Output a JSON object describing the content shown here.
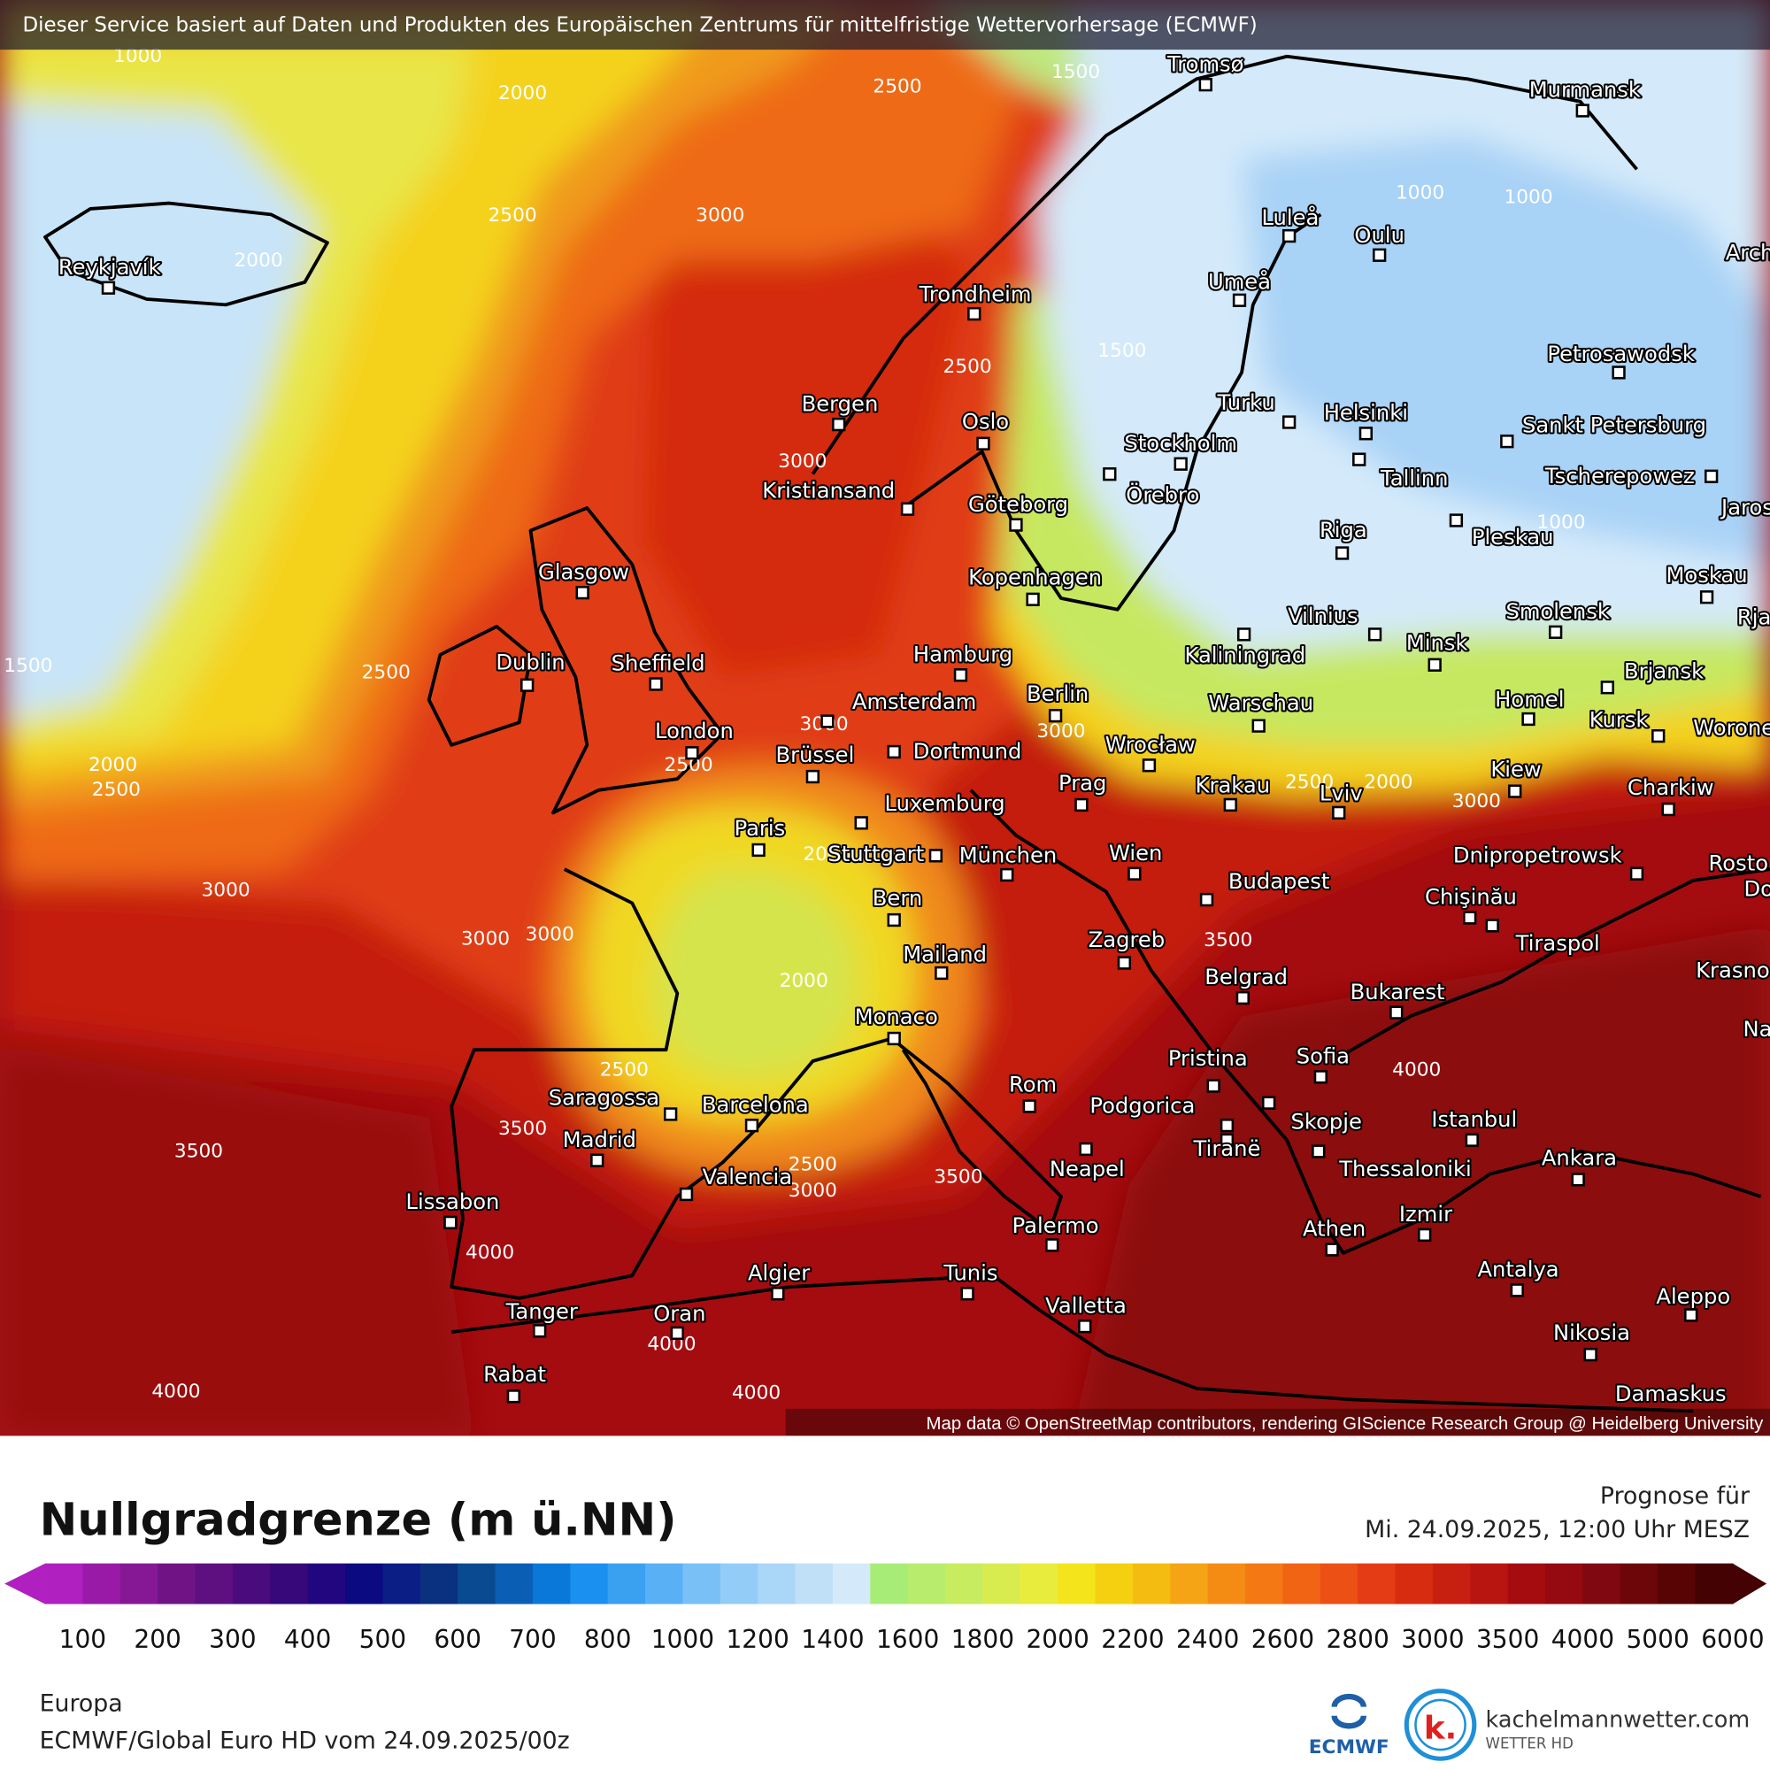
{
  "header": {
    "notice": "Dieser Service basiert auf Daten und Produkten des Europäischen Zentrums für mittelfristige Wettervorhersage (ECMWF)"
  },
  "map": {
    "cities": [
      "Tromsø",
      "Murmansk",
      "Reykjavík",
      "Luleå",
      "Oulu",
      "Umeå",
      "Trondheim",
      "Arch",
      "Petrosawodsk",
      "Bergen",
      "Oslo",
      "Turku",
      "Helsinki",
      "Sankt Petersburg",
      "Stockholm",
      "Örebro",
      "Tallinn",
      "Tscherepowez",
      "Jaros",
      "Kristiansand",
      "Göteborg",
      "Riga",
      "Pleskau",
      "Glasgow",
      "Kopenhagen",
      "Moskau",
      "Smolensk",
      "Vilnius",
      "Minsk",
      "Rja",
      "Kaliningrad",
      "Hamburg",
      "Dublin",
      "Sheffield",
      "Brjansk",
      "Berlin",
      "Amsterdam",
      "Warschau",
      "Homel",
      "Kursk",
      "Worone",
      "London",
      "Dortmund",
      "Brüssel",
      "Wrocław",
      "Kiew",
      "Charkiw",
      "Prag",
      "Krakau",
      "Lviv",
      "Luxemburg",
      "Paris",
      "Stuttgart",
      "München",
      "Wien",
      "Dnipropetrowsk",
      "Rosto",
      "Budapest",
      "Bern",
      "Chişinău",
      "Do",
      "Tiraspol",
      "Zagreb",
      "Mailand",
      "Krasno",
      "Belgrad",
      "Bukarest",
      "Na",
      "Monaco",
      "Pristina",
      "Sofia",
      "Rom",
      "Saragossa",
      "Barcelona",
      "Podgorica",
      "Skopje",
      "Tiranë",
      "Istanbul",
      "Madrid",
      "Ankara",
      "Neapel",
      "Thessaloniki",
      "Valencia",
      "Lissabon",
      "Palermo",
      "Athen",
      "Izmir",
      "Algier",
      "Tunis",
      "Antalya",
      "Aleppo",
      "Valletta",
      "Tanger",
      "Oran",
      "Nikosia",
      "Rabat",
      "Damaskus"
    ],
    "contour_labels": [
      1000,
      2000,
      2500,
      1500,
      2000,
      2500,
      3000,
      2000,
      1000,
      1000,
      2500,
      1500,
      3000,
      1500,
      2500,
      2000,
      2500,
      3000,
      3000,
      2500,
      2500,
      2000,
      3000,
      1000,
      3000,
      3000,
      3000,
      2000,
      3500,
      2500,
      4000,
      3500,
      3500,
      2500,
      3000,
      3500,
      4000,
      4000,
      4000,
      4000
    ],
    "attribution": "Map data © OpenStreetMap contributors, rendering GIScience Research Group @ Heidelberg University"
  },
  "legend": {
    "title": "Nullgradgrenze (m ü.NN)",
    "ticks": [
      100,
      200,
      300,
      400,
      500,
      600,
      700,
      800,
      1000,
      1200,
      1400,
      1600,
      1800,
      2000,
      2200,
      2400,
      2600,
      2800,
      3000,
      3500,
      4000,
      5000,
      6000
    ],
    "colors": [
      "#b01fc0",
      "#9a1aa8",
      "#861896",
      "#701485",
      "#5e1080",
      "#4a0c7c",
      "#36087a",
      "#220680",
      "#0c0a80",
      "#0a1e86",
      "#0a3080",
      "#0a4a90",
      "#0a5eb4",
      "#0a78d8",
      "#1a90f0",
      "#3aa0f0",
      "#5ab0f4",
      "#78c0f6",
      "#94ccf8",
      "#aad6f8",
      "#c0e0f8",
      "#d4eafa",
      "#a8ec78",
      "#b8ec6c",
      "#c8ec60",
      "#d8ec50",
      "#e8ec3c",
      "#f4e41c",
      "#f4d010",
      "#f4bc10",
      "#f4a414",
      "#f48c14",
      "#f47814",
      "#f06414",
      "#ec5014",
      "#e43c14",
      "#d82c10",
      "#c82010",
      "#b81410",
      "#a40c10",
      "#940a10",
      "#800810",
      "#6c0608",
      "#580404",
      "#440202"
    ]
  },
  "forecast": {
    "label": "Prognose für",
    "time": "Mi. 24.09.2025, 12:00 Uhr MESZ"
  },
  "footer": {
    "region": "Europa",
    "model": "ECMWF/Global Euro HD vom  24.09.2025/00z"
  },
  "logos": {
    "ecmwf": "ECMWF",
    "mark": "k.",
    "site": "kachelmannwetter.com",
    "site_sub": "WETTER HD"
  }
}
